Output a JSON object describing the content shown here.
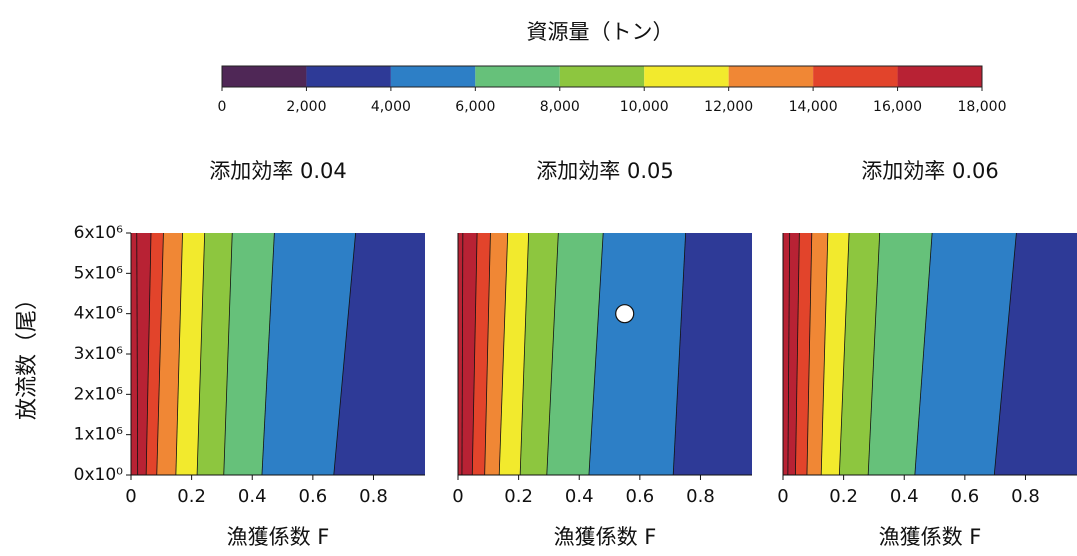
{
  "chart_data": {
    "type": "contour",
    "title": "資源量（トン）",
    "clim": [
      0,
      18000
    ],
    "cticks": [
      0,
      {
        "value": 2000,
        "label": "2,000"
      },
      {
        "value": 4000,
        "label": "4,000"
      },
      {
        "value": 6000,
        "label": "6,000"
      },
      {
        "value": 8000,
        "label": "8,000"
      },
      {
        "value": 10000,
        "label": "10,000"
      },
      {
        "value": 12000,
        "label": "12,000"
      },
      {
        "value": 14000,
        "label": "14,000"
      },
      {
        "value": 16000,
        "label": "16,000"
      },
      {
        "value": 18000,
        "label": "18,000"
      }
    ],
    "colors": [
      "#4f2756",
      "#2e3a97",
      "#2d7fc6",
      "#66c17a",
      "#8dc63f",
      "#f2ea2d",
      "#f08735",
      "#e2442b",
      "#b82234"
    ],
    "xlabel": "漁獲係数 F",
    "ylabel": "放流数（尾）",
    "xlim": [
      0,
      0.97
    ],
    "xticks": [
      0,
      0.2,
      0.4,
      0.6,
      0.8
    ],
    "ylim": [
      0,
      6000000
    ],
    "yticks": [
      {
        "value": 0,
        "label": "0x10⁰"
      },
      {
        "value": 1000000,
        "label": "1x10⁶"
      },
      {
        "value": 2000000,
        "label": "2x10⁶"
      },
      {
        "value": 3000000,
        "label": "3x10⁶"
      },
      {
        "value": 4000000,
        "label": "4x10⁶"
      },
      {
        "value": 5000000,
        "label": "5x10⁶"
      },
      {
        "value": 6000000,
        "label": "6x10⁶"
      }
    ],
    "panels": [
      {
        "title": "添加効率 0.04",
        "contours": [
          {
            "level": 2000,
            "x": [
              0.669,
              0.741
            ]
          },
          {
            "level": 4000,
            "x": [
              0.432,
              0.473
            ]
          },
          {
            "level": 6000,
            "x": [
              0.306,
              0.334
            ]
          },
          {
            "level": 8000,
            "x": [
              0.218,
              0.243
            ]
          },
          {
            "level": 10000,
            "x": [
              0.148,
              0.17
            ]
          },
          {
            "level": 12000,
            "x": [
              0.085,
              0.107
            ]
          },
          {
            "level": 14000,
            "x": [
              0.05,
              0.066
            ]
          },
          {
            "level": 16000,
            "x": [
              0.022,
              0.019
            ]
          }
        ]
      },
      {
        "title": "添加効率 0.05",
        "contours": [
          {
            "level": 2000,
            "x": [
              0.71,
              0.751
            ]
          },
          {
            "level": 4000,
            "x": [
              0.432,
              0.479
            ]
          },
          {
            "level": 6000,
            "x": [
              0.293,
              0.331
            ]
          },
          {
            "level": 8000,
            "x": [
              0.205,
              0.233
            ]
          },
          {
            "level": 10000,
            "x": [
              0.136,
              0.164
            ]
          },
          {
            "level": 12000,
            "x": [
              0.088,
              0.107
            ]
          },
          {
            "level": 14000,
            "x": [
              0.047,
              0.063
            ]
          },
          {
            "level": 16000,
            "x": [
              0.013,
              0.016
            ]
          }
        ],
        "marker": {
          "x": 0.55,
          "y": 4000000
        }
      },
      {
        "title": "添加効率 0.06",
        "contours": [
          {
            "level": 2000,
            "x": [
              0.697,
              0.77
            ]
          },
          {
            "level": 4000,
            "x": [
              0.435,
              0.492
            ]
          },
          {
            "level": 6000,
            "x": [
              0.281,
              0.319
            ]
          },
          {
            "level": 8000,
            "x": [
              0.186,
              0.218
            ]
          },
          {
            "level": 10000,
            "x": [
              0.126,
              0.148
            ]
          },
          {
            "level": 12000,
            "x": [
              0.079,
              0.095
            ]
          },
          {
            "level": 14000,
            "x": [
              0.041,
              0.054
            ]
          },
          {
            "level": 16000,
            "x": [
              0.016,
              0.022
            ]
          }
        ]
      }
    ]
  }
}
